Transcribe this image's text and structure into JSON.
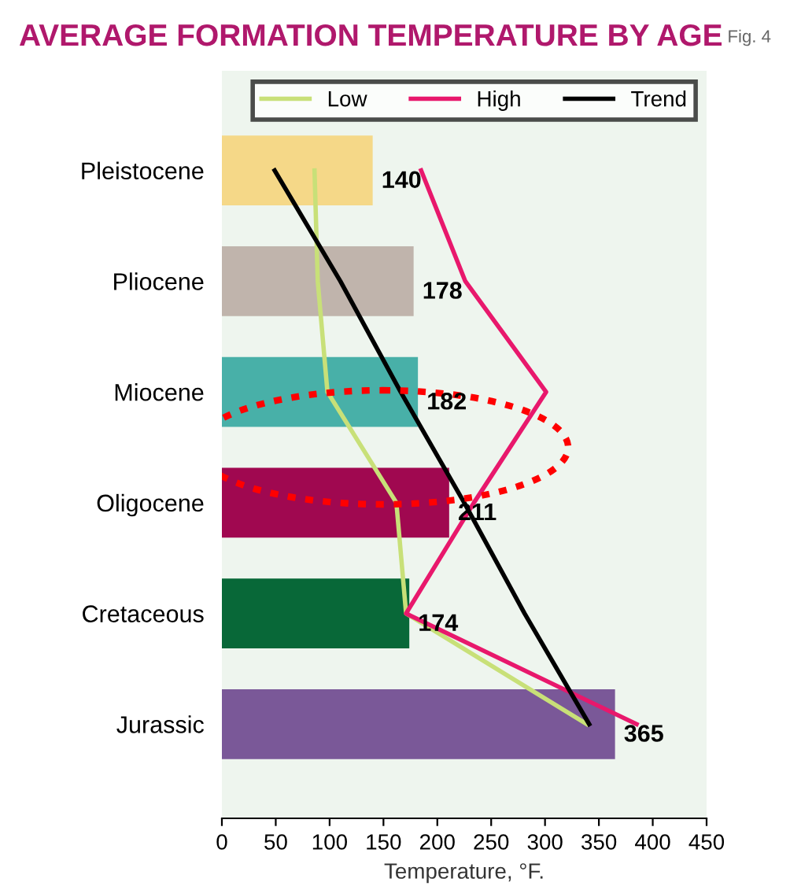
{
  "chart_data": {
    "type": "bar",
    "orientation": "horizontal",
    "title": "AVERAGE FORMATION TEMPERATURE BY AGE",
    "annotations": [
      "Fig. 4"
    ],
    "xlabel": "Temperature, °F.",
    "categories": [
      "Pleistocene",
      "Pliocene",
      "Miocene",
      "Oligocene",
      "Cretaceous",
      "Jurassic"
    ],
    "values": [
      140,
      178,
      182,
      211,
      174,
      365
    ],
    "colors": [
      "#f5d888",
      "#c0b4ac",
      "#48b0a8",
      "#a00850",
      "#086838",
      "#7a5898"
    ],
    "value_labels": [
      "140",
      "178",
      "182",
      "211",
      "174",
      "365"
    ],
    "series": [
      {
        "name": "Low",
        "type": "line",
        "color": "#c8e078",
        "values": [
          86,
          89,
          98,
          162,
          171,
          339
        ]
      },
      {
        "name": "High",
        "type": "line",
        "color": "#e8186c",
        "values": [
          185,
          226,
          301,
          234,
          171,
          385
        ]
      },
      {
        "name": "Trend",
        "type": "line",
        "color": "#000000",
        "values": [
          49,
          110,
          166,
          225,
          281,
          341
        ]
      }
    ],
    "xlim": [
      0,
      450
    ],
    "xticks": [
      0,
      50,
      100,
      150,
      200,
      250,
      300,
      350,
      400,
      450
    ],
    "grid": false,
    "legend": "top right"
  }
}
